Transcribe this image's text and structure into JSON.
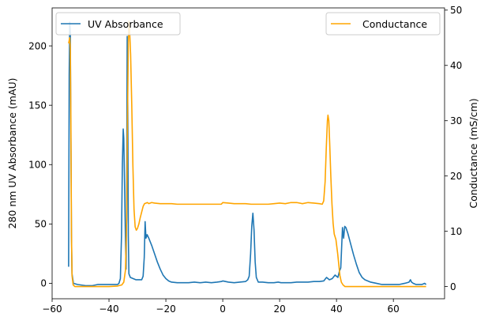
{
  "chart_data": {
    "type": "line",
    "dual_axis": true,
    "x_axis": {
      "range": [
        -60,
        78
      ],
      "ticks": [
        -60,
        -40,
        -20,
        0,
        20,
        40,
        60
      ],
      "label": ""
    },
    "y_axis_left": {
      "label": "280 nm UV Absorbance (mAU)",
      "range": [
        -13,
        232
      ],
      "ticks": [
        0,
        50,
        100,
        150,
        200
      ]
    },
    "y_axis_right": {
      "label": "Conductance (mS/cm)",
      "range": [
        -2.2,
        50.4
      ],
      "ticks": [
        0,
        10,
        20,
        30,
        40,
        50
      ]
    },
    "grid": false,
    "series": [
      {
        "name": "UV Absorbance",
        "axis": "left",
        "color": "#1f77b4",
        "points": [
          [
            -54.2,
            14
          ],
          [
            -54.0,
            175
          ],
          [
            -53.8,
            220
          ],
          [
            -53.6,
            210
          ],
          [
            -53.4,
            120
          ],
          [
            -53.2,
            40
          ],
          [
            -53.0,
            8
          ],
          [
            -52.5,
            0
          ],
          [
            -51,
            -1
          ],
          [
            -48,
            -2
          ],
          [
            -46,
            -2
          ],
          [
            -44,
            -1
          ],
          [
            -42,
            -1
          ],
          [
            -40,
            -1
          ],
          [
            -38,
            -1
          ],
          [
            -37,
            -1
          ],
          [
            -36.5,
            0
          ],
          [
            -36,
            4
          ],
          [
            -35.6,
            40
          ],
          [
            -35.3,
            100
          ],
          [
            -35.0,
            130
          ],
          [
            -34.8,
            122
          ],
          [
            -34.5,
            80
          ],
          [
            -34.2,
            35
          ],
          [
            -34.0,
            12
          ],
          [
            -33.8,
            60
          ],
          [
            -33.6,
            208
          ],
          [
            -33.4,
            150
          ],
          [
            -33.2,
            40
          ],
          [
            -33.0,
            8
          ],
          [
            -32.5,
            5
          ],
          [
            -31.5,
            4
          ],
          [
            -30.5,
            3
          ],
          [
            -29.5,
            3
          ],
          [
            -28.5,
            3
          ],
          [
            -28.0,
            6
          ],
          [
            -27.6,
            22
          ],
          [
            -27.3,
            52
          ],
          [
            -27.0,
            38
          ],
          [
            -26.6,
            41
          ],
          [
            -26.0,
            38
          ],
          [
            -25.0,
            32
          ],
          [
            -24.0,
            25
          ],
          [
            -23.0,
            18
          ],
          [
            -22.0,
            12
          ],
          [
            -21.0,
            7
          ],
          [
            -20.0,
            4
          ],
          [
            -19.0,
            2
          ],
          [
            -18.0,
            1
          ],
          [
            -16,
            0.5
          ],
          [
            -14,
            0.5
          ],
          [
            -12,
            0.5
          ],
          [
            -10,
            1
          ],
          [
            -8,
            0.5
          ],
          [
            -6,
            1
          ],
          [
            -4,
            0.5
          ],
          [
            -2,
            1
          ],
          [
            -0.5,
            1.5
          ],
          [
            0,
            2
          ],
          [
            2,
            1
          ],
          [
            4,
            0.5
          ],
          [
            6,
            1
          ],
          [
            8,
            1.5
          ],
          [
            8.8,
            3
          ],
          [
            9.3,
            6
          ],
          [
            9.8,
            25
          ],
          [
            10.2,
            48
          ],
          [
            10.6,
            59
          ],
          [
            11.0,
            45
          ],
          [
            11.4,
            18
          ],
          [
            11.8,
            5
          ],
          [
            12.5,
            1
          ],
          [
            14,
            1
          ],
          [
            16,
            0.5
          ],
          [
            18,
            0.5
          ],
          [
            19.5,
            1
          ],
          [
            20.5,
            0.5
          ],
          [
            22,
            0.5
          ],
          [
            24,
            0.5
          ],
          [
            26,
            1
          ],
          [
            28,
            1
          ],
          [
            30,
            1
          ],
          [
            32,
            1.5
          ],
          [
            34,
            1.5
          ],
          [
            35.5,
            2
          ],
          [
            36.5,
            5
          ],
          [
            37.5,
            3
          ],
          [
            38.5,
            4
          ],
          [
            39.5,
            7
          ],
          [
            40.5,
            5
          ],
          [
            41.0,
            10
          ],
          [
            41.5,
            13
          ],
          [
            41.8,
            30
          ],
          [
            42.1,
            47
          ],
          [
            42.5,
            38
          ],
          [
            42.9,
            48
          ],
          [
            43.3,
            47
          ],
          [
            44,
            42
          ],
          [
            45,
            33
          ],
          [
            46,
            24
          ],
          [
            47,
            16
          ],
          [
            48,
            9
          ],
          [
            49,
            5
          ],
          [
            50,
            3
          ],
          [
            52,
            1
          ],
          [
            54,
            0
          ],
          [
            56,
            -1
          ],
          [
            58,
            -1
          ],
          [
            60,
            -1
          ],
          [
            62,
            -1
          ],
          [
            64,
            0
          ],
          [
            65.5,
            1
          ],
          [
            66.0,
            3
          ],
          [
            66.4,
            1
          ],
          [
            67,
            0
          ],
          [
            68,
            -1
          ],
          [
            70,
            -1
          ],
          [
            71,
            0
          ],
          [
            71.5,
            -1
          ]
        ]
      },
      {
        "name": "Conductance",
        "axis": "right",
        "color": "#ffa500",
        "points": [
          [
            -54.2,
            44
          ],
          [
            -54.0,
            44.5
          ],
          [
            -53.8,
            45
          ],
          [
            -53.6,
            43
          ],
          [
            -53.4,
            30
          ],
          [
            -53.2,
            10
          ],
          [
            -53.0,
            2
          ],
          [
            -52.6,
            0.3
          ],
          [
            -52.0,
            0
          ],
          [
            -48,
            0
          ],
          [
            -44,
            0
          ],
          [
            -40,
            0
          ],
          [
            -37,
            0.1
          ],
          [
            -35.5,
            0.3
          ],
          [
            -34.8,
            0.8
          ],
          [
            -34.2,
            3
          ],
          [
            -33.8,
            12
          ],
          [
            -33.5,
            30
          ],
          [
            -33.2,
            44
          ],
          [
            -33.0,
            48
          ],
          [
            -32.8,
            47
          ],
          [
            -32.4,
            42
          ],
          [
            -32.0,
            33
          ],
          [
            -31.6,
            22
          ],
          [
            -31.2,
            14
          ],
          [
            -30.8,
            10.8
          ],
          [
            -30.4,
            10.2
          ],
          [
            -30.0,
            10.5
          ],
          [
            -29.5,
            11.3
          ],
          [
            -29.0,
            12.5
          ],
          [
            -28.5,
            13.5
          ],
          [
            -28.0,
            14.5
          ],
          [
            -27.5,
            15
          ],
          [
            -27.0,
            15.1
          ],
          [
            -26.5,
            15.2
          ],
          [
            -26.0,
            15.0
          ],
          [
            -25.0,
            15.2
          ],
          [
            -24.0,
            15.1
          ],
          [
            -22.0,
            15.0
          ],
          [
            -20.0,
            15.0
          ],
          [
            -18.0,
            15.0
          ],
          [
            -16,
            14.9
          ],
          [
            -14,
            14.9
          ],
          [
            -12,
            14.9
          ],
          [
            -10,
            14.9
          ],
          [
            -8,
            14.9
          ],
          [
            -6,
            14.9
          ],
          [
            -4,
            14.9
          ],
          [
            -2,
            14.9
          ],
          [
            -0.5,
            14.9
          ],
          [
            0,
            15.2
          ],
          [
            2,
            15.1
          ],
          [
            4,
            15.0
          ],
          [
            6,
            15.0
          ],
          [
            8,
            15.0
          ],
          [
            10,
            14.9
          ],
          [
            12,
            14.9
          ],
          [
            14,
            14.9
          ],
          [
            16,
            14.9
          ],
          [
            18,
            15.0
          ],
          [
            20,
            15.1
          ],
          [
            22,
            15.0
          ],
          [
            24,
            15.2
          ],
          [
            26,
            15.2
          ],
          [
            28,
            15.0
          ],
          [
            30,
            15.2
          ],
          [
            32,
            15.1
          ],
          [
            34,
            15.0
          ],
          [
            35.0,
            14.9
          ],
          [
            35.5,
            15.5
          ],
          [
            36.0,
            19
          ],
          [
            36.4,
            25
          ],
          [
            36.8,
            30
          ],
          [
            37.0,
            31
          ],
          [
            37.3,
            30
          ],
          [
            37.6,
            26
          ],
          [
            38.0,
            20
          ],
          [
            38.4,
            15
          ],
          [
            38.8,
            11.5
          ],
          [
            39.2,
            9.5
          ],
          [
            39.8,
            8.5
          ],
          [
            40.4,
            6
          ],
          [
            40.8,
            4
          ],
          [
            41.2,
            2
          ],
          [
            41.7,
            0.8
          ],
          [
            42.3,
            0.3
          ],
          [
            43.0,
            0
          ],
          [
            46,
            0
          ],
          [
            50,
            0
          ],
          [
            55,
            0
          ],
          [
            60,
            0
          ],
          [
            65,
            0
          ],
          [
            70,
            0
          ],
          [
            71.5,
            0
          ]
        ]
      }
    ],
    "legends": [
      {
        "position": "top-left",
        "entries": [
          "UV Absorbance"
        ]
      },
      {
        "position": "top-right",
        "entries": [
          "Conductance"
        ]
      }
    ]
  }
}
